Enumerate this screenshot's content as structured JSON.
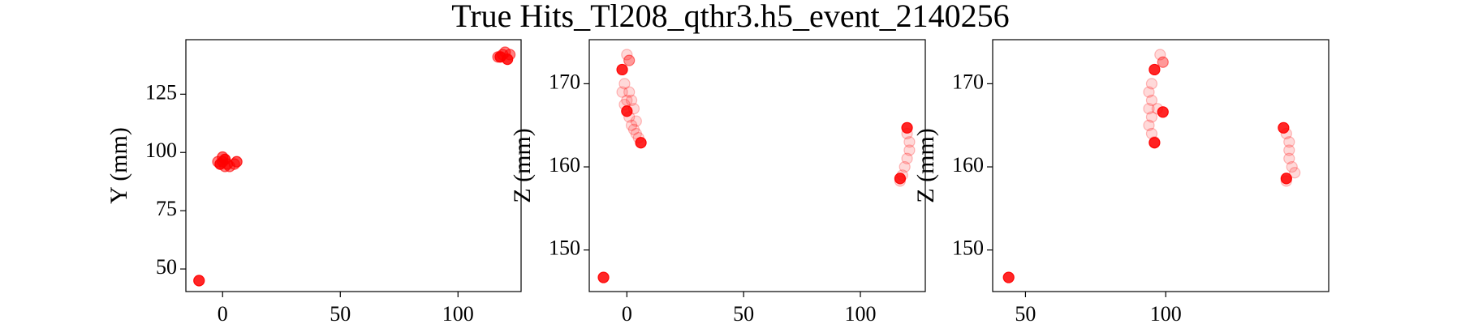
{
  "title": "True Hits_Tl208_qthr3.h5_event_2140256",
  "chart_data": [
    {
      "type": "scatter",
      "ylabel": "Y (mm)",
      "color": "#ff0000",
      "x": [
        -10,
        -1,
        0,
        1,
        0,
        2,
        3,
        5,
        6,
        -2,
        1,
        118,
        120,
        121,
        119,
        122,
        117
      ],
      "y": [
        45,
        95,
        96,
        97,
        98,
        95,
        94,
        95,
        96,
        96,
        94,
        141,
        143,
        140,
        142,
        142,
        141
      ],
      "alphas": [
        0.85,
        0.85,
        0.6,
        0.85,
        0.6,
        0.6,
        0.5,
        0.5,
        0.7,
        0.5,
        0.5,
        0.85,
        0.5,
        0.85,
        0.5,
        0.5,
        0.5
      ],
      "xlim": [
        -15.6,
        126.8
      ],
      "ylim": [
        40.3,
        148.4
      ],
      "xticks": [
        0,
        50,
        100
      ],
      "yticks": [
        50,
        75,
        100,
        125
      ]
    },
    {
      "type": "scatter",
      "ylabel": "Z (mm)",
      "color": "#ff0000",
      "x": [
        -10,
        -2,
        1,
        0,
        -1,
        -2,
        0,
        -1,
        0,
        1,
        2,
        3,
        4,
        5,
        6,
        1,
        2,
        3,
        4,
        120,
        120,
        121,
        121,
        120,
        119,
        118,
        117,
        117
      ],
      "y": [
        146.7,
        171.7,
        172.8,
        173.5,
        170,
        169,
        168,
        167.5,
        166.7,
        166,
        165,
        164.5,
        164,
        163.5,
        162.9,
        169,
        168,
        167,
        165.5,
        164.7,
        164,
        163,
        162,
        161,
        160,
        159,
        158.6,
        158.3
      ],
      "alphas": [
        0.85,
        0.85,
        0.4,
        0.15,
        0.15,
        0.15,
        0.15,
        0.15,
        0.85,
        0.15,
        0.15,
        0.15,
        0.15,
        0.15,
        0.85,
        0.15,
        0.15,
        0.15,
        0.15,
        0.85,
        0.15,
        0.15,
        0.15,
        0.15,
        0.15,
        0.15,
        0.85,
        0.15
      ],
      "xlim": [
        -16.1,
        127.8
      ],
      "ylim": [
        145.0,
        175.3
      ],
      "xticks": [
        0,
        50,
        100
      ],
      "yticks": [
        150,
        160,
        170
      ]
    },
    {
      "type": "scatter",
      "ylabel": "Z (mm)",
      "color": "#ff0000",
      "x": [
        44,
        96,
        99,
        98,
        95,
        94,
        95,
        94,
        95,
        94,
        95,
        96,
        96,
        99,
        97,
        142,
        143,
        144,
        144,
        144,
        145,
        146,
        143,
        143
      ],
      "y": [
        146.7,
        171.7,
        172.6,
        173.5,
        170,
        169,
        168,
        167,
        166,
        165,
        164,
        163,
        162.9,
        166.6,
        167,
        164.7,
        164,
        163,
        162,
        161,
        160,
        159.3,
        158.6,
        158.3
      ],
      "alphas": [
        0.85,
        0.85,
        0.4,
        0.15,
        0.15,
        0.15,
        0.15,
        0.15,
        0.15,
        0.15,
        0.15,
        0.15,
        0.85,
        0.85,
        0.15,
        0.85,
        0.15,
        0.15,
        0.15,
        0.15,
        0.15,
        0.15,
        0.85,
        0.15
      ],
      "xlim": [
        38.3,
        158.1
      ],
      "ylim": [
        145.0,
        175.3
      ],
      "xticks": [
        50,
        100
      ],
      "yticks": [
        150,
        160,
        170
      ]
    }
  ]
}
